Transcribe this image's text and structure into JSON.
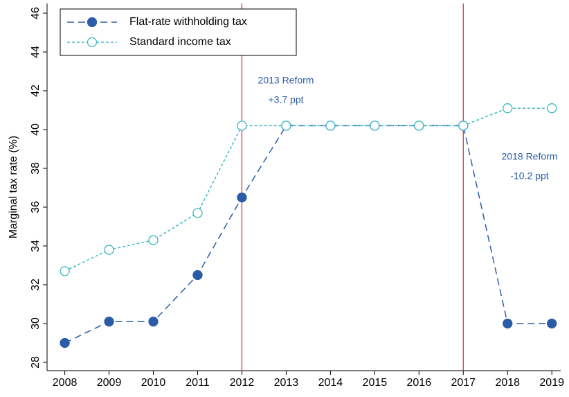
{
  "chart_data": {
    "type": "line",
    "y_label": "Marginal tax rate (%)",
    "x": [
      2008,
      2009,
      2010,
      2011,
      2012,
      2013,
      2014,
      2015,
      2016,
      2017,
      2018,
      2019
    ],
    "series": [
      {
        "name": "Flat-rate withholding tax",
        "color": "#2a5ca8",
        "marker": "filled",
        "values": [
          29.0,
          30.1,
          30.1,
          32.5,
          36.5,
          40.2,
          40.2,
          40.2,
          40.2,
          40.2,
          30.0,
          30.0
        ]
      },
      {
        "name": "Standard income tax",
        "color": "#3bb8c4",
        "marker": "hollow",
        "values": [
          32.7,
          33.8,
          34.3,
          35.7,
          40.2,
          40.2,
          40.2,
          40.2,
          40.2,
          40.2,
          41.1,
          41.1
        ]
      }
    ],
    "vlines": [
      2012,
      2017
    ],
    "vline_color": "#d62728",
    "annotations": [
      {
        "lines": [
          "2013 Reform",
          "+3.7 ppt"
        ]
      },
      {
        "lines": [
          "2018 Reform",
          "-10.2 ppt"
        ]
      }
    ],
    "xlim": [
      2007.6,
      2019.2
    ],
    "xticks": [
      2008,
      2009,
      2010,
      2011,
      2012,
      2013,
      2014,
      2015,
      2016,
      2017,
      2018,
      2019
    ],
    "ylim": [
      27.57,
      46.5
    ],
    "yticks": [
      28,
      30,
      32,
      34,
      36,
      38,
      40,
      42,
      44,
      46
    ],
    "legend": "top-left"
  }
}
